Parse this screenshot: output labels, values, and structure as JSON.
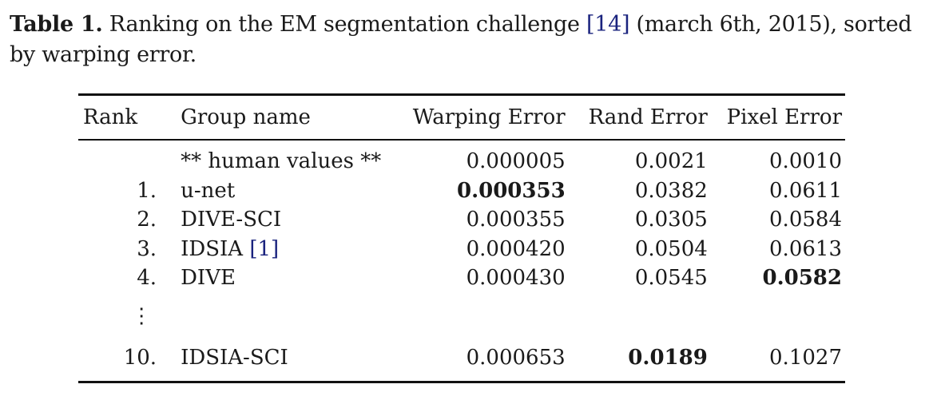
{
  "caption": {
    "label": "Table 1.",
    "text_before": " Ranking on the EM segmentation challenge ",
    "citation": "[14]",
    "text_after": " (march 6th, 2015), sorted by warping error."
  },
  "table": {
    "headers": {
      "rank": "Rank",
      "group": "Group name",
      "warping": "Warping Error",
      "rand": "Rand Error",
      "pixel": "Pixel Error"
    },
    "rows": [
      {
        "rank": "",
        "group": "** human values **",
        "group_cite": "",
        "warping": "0.000005",
        "rand": "0.0021",
        "pixel": "0.0010"
      },
      {
        "rank": "1.",
        "group": "u-net",
        "group_cite": "",
        "warping": "0.000353",
        "rand": "0.0382",
        "pixel": "0.0611"
      },
      {
        "rank": "2.",
        "group": "DIVE-SCI",
        "group_cite": "",
        "warping": "0.000355",
        "rand": "0.0305",
        "pixel": "0.0584"
      },
      {
        "rank": "3.",
        "group": "IDSIA ",
        "group_cite": "[1]",
        "warping": "0.000420",
        "rand": "0.0504",
        "pixel": "0.0613"
      },
      {
        "rank": "4.",
        "group": "DIVE",
        "group_cite": "",
        "warping": "0.000430",
        "rand": "0.0545",
        "pixel": "0.0582"
      },
      {
        "rank": "10.",
        "group": "IDSIA-SCI",
        "group_cite": "",
        "warping": "0.000653",
        "rand": "0.0189",
        "pixel": "0.1027"
      }
    ],
    "ellipsis": "⋮"
  }
}
